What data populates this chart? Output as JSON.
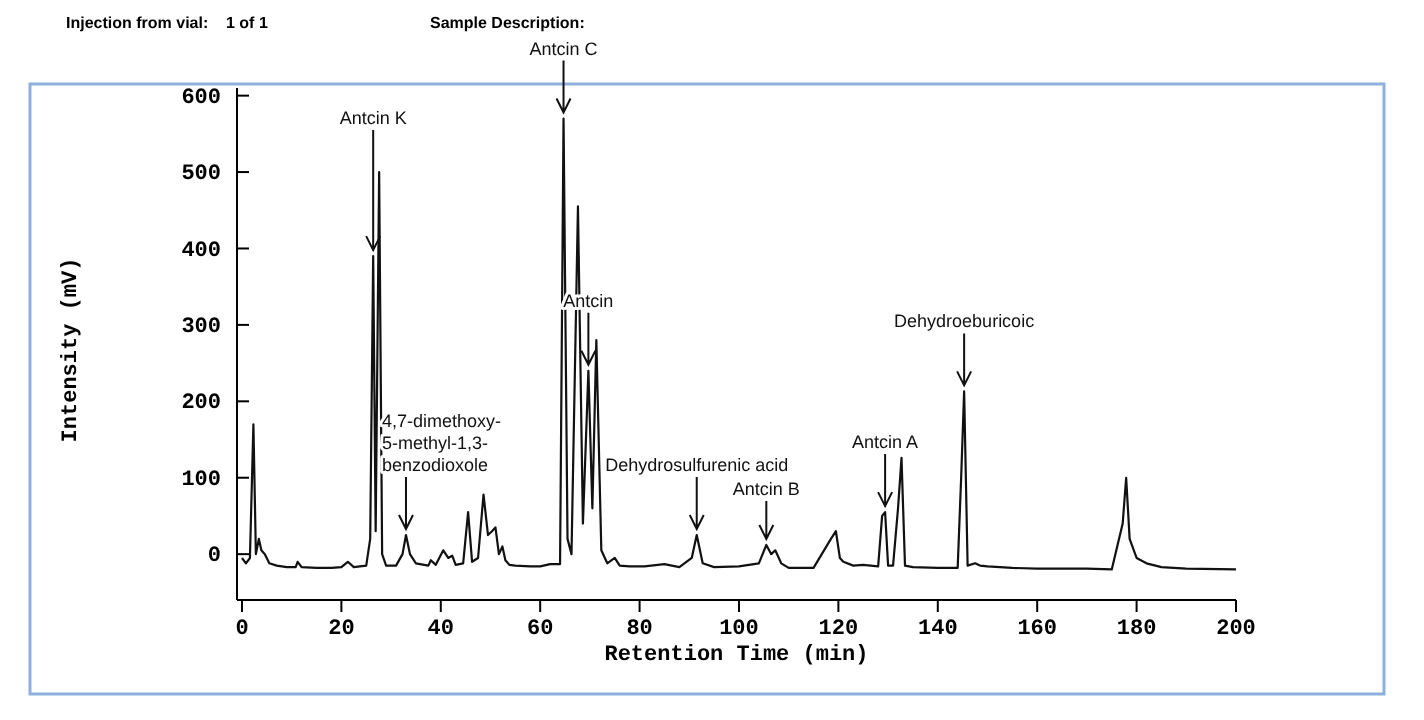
{
  "chart_data": {
    "type": "line",
    "xlabel": "Retention Time (min)",
    "ylabel": "Intensity (mV)",
    "xlim": [
      -1,
      200
    ],
    "ylim": [
      -60,
      610
    ],
    "xticks": [
      0,
      20,
      40,
      60,
      80,
      100,
      120,
      140,
      160,
      180,
      200
    ],
    "yticks": [
      0,
      100,
      200,
      300,
      400,
      500,
      600
    ],
    "grid": false,
    "marker": "none",
    "line_style": "solid",
    "series": [
      {
        "color": "#111111",
        "x": [
          0,
          0.8,
          1.6,
          2.3,
          2.8,
          3.4,
          3.9,
          4.6,
          5.5,
          7,
          9,
          10.8,
          11.2,
          12,
          15,
          18,
          20,
          21.3,
          22.5,
          25,
          25.8,
          26.4,
          26.9,
          27.6,
          28.2,
          29,
          31,
          32.3,
          33,
          33.8,
          35,
          37.5,
          38,
          39,
          40.5,
          41.5,
          42.3,
          43,
          44.5,
          45.5,
          46.3,
          47.5,
          48.6,
          49.5,
          50.3,
          51,
          51.7,
          52.4,
          53,
          53.8,
          55,
          58,
          60,
          62,
          64,
          64.7,
          65.5,
          66.3,
          67.6,
          68.6,
          69.7,
          70.5,
          71.3,
          72.3,
          73.5,
          75,
          76,
          78,
          81,
          85,
          88,
          90.5,
          91.5,
          92.7,
          95,
          100,
          104,
          105.5,
          106.5,
          107.3,
          108.5,
          110,
          115,
          118.5,
          119.5,
          120.3,
          121,
          123,
          125,
          128,
          128.8,
          129.4,
          130,
          131,
          132,
          132.7,
          133.4,
          135,
          140,
          144,
          144.7,
          145.3,
          146,
          147.5,
          148.5,
          150,
          155,
          160,
          170,
          175,
          177.2,
          177.9,
          178.6,
          180,
          182,
          185,
          190,
          200
        ],
        "values": [
          -5,
          -12,
          -5,
          170,
          0,
          20,
          5,
          0,
          -12,
          -15,
          -17,
          -17,
          -10,
          -17,
          -18,
          -18,
          -17,
          -10,
          -17,
          -15,
          20,
          390,
          30,
          500,
          0,
          -15,
          -15,
          0,
          25,
          0,
          -12,
          -15,
          -8,
          -14,
          5,
          -5,
          -2,
          -14,
          -12,
          55,
          -10,
          -5,
          78,
          25,
          30,
          35,
          0,
          10,
          -8,
          -14,
          -15,
          -16,
          -16,
          -13,
          -13,
          570,
          20,
          0,
          455,
          40,
          240,
          60,
          280,
          5,
          -12,
          -5,
          -15,
          -16,
          -16,
          -13,
          -17,
          -5,
          25,
          -12,
          -17,
          -16,
          -12,
          12,
          0,
          5,
          -12,
          -18,
          -18,
          20,
          30,
          -5,
          -10,
          -15,
          -14,
          -16,
          50,
          55,
          -15,
          -15,
          60,
          126,
          -15,
          -17,
          -18,
          -18,
          100,
          213,
          -15,
          -12,
          -15,
          -16,
          -18,
          -19,
          -19,
          -20,
          40,
          100,
          20,
          -5,
          -12,
          -17,
          -19,
          -20
        ]
      }
    ],
    "annotations": [
      "Injection from vial:",
      "1 of 1",
      "Sample Description:",
      {
        "text": "Antcin K",
        "x": 26.4,
        "y": 390
      },
      {
        "text": "4,7-dimethoxy-\n5-methyl-1,3-\nbenzodioxole",
        "x": 33,
        "y": 25
      },
      {
        "text": "Antcin C",
        "x": 64.7,
        "y": 570
      },
      {
        "text": "Antcin",
        "x": 69.7,
        "y": 240
      },
      {
        "text": "Dehydrosulfurenic acid",
        "x": 91.5,
        "y": 25
      },
      {
        "text": "Antcin B",
        "x": 105.5,
        "y": 12
      },
      {
        "text": "Antcin A",
        "x": 129.4,
        "y": 55
      },
      {
        "text": "Dehydroeburicoic",
        "x": 145.3,
        "y": 213
      }
    ]
  }
}
